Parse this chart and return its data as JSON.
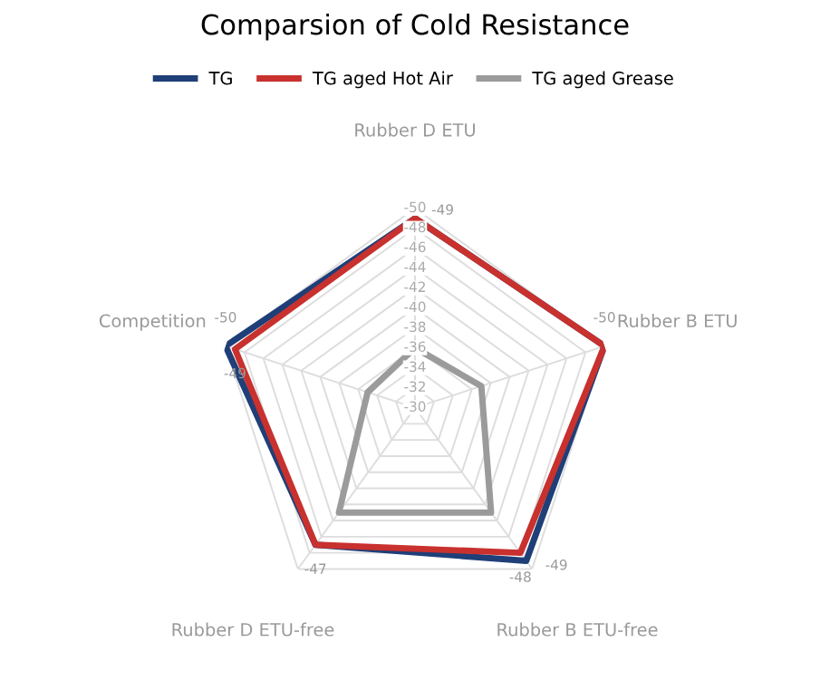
{
  "chart_data": {
    "type": "radar",
    "title": "Comparsion of Cold Resistance",
    "categories": [
      "Rubber D ETU",
      "Rubber B ETU",
      "Rubber B ETU-free",
      "Rubber D ETU-free",
      "Competition"
    ],
    "series": [
      {
        "name": "TG",
        "color": "#1f3f78",
        "values": [
          -49,
          -50,
          -49,
          -47,
          -50
        ],
        "value_labels": [
          "-49",
          "-50",
          "-49",
          "-47",
          "-50"
        ]
      },
      {
        "name": "TG aged Hot Air",
        "color": "#c8312e",
        "values": [
          -49,
          -50,
          -48,
          -47,
          -49
        ],
        "value_labels": [
          null,
          null,
          "-48",
          null,
          "-49"
        ]
      },
      {
        "name": "TG aged Grease",
        "color": "#9b9b9b",
        "values": [
          -36,
          -37,
          -43,
          -43,
          -35
        ]
      }
    ],
    "ylim": [
      -30,
      -50
    ],
    "yticks": [
      -30,
      -32,
      -34,
      -36,
      -38,
      -40,
      -42,
      -44,
      -46,
      -48,
      -50
    ],
    "grid": true,
    "legend": "top",
    "marker": "none",
    "line_style": "solid"
  }
}
